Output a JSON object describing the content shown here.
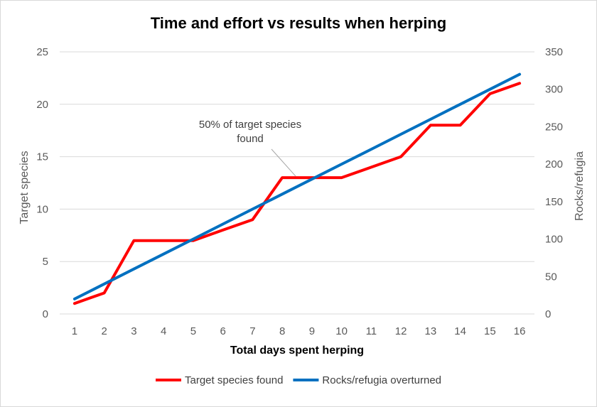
{
  "chart_data": {
    "type": "line",
    "title": "Time and effort vs results when herping",
    "xlabel": "Total days spent herping",
    "ylabel_left": "Target species",
    "ylabel_right": "Rocks/refugia",
    "x": [
      1,
      2,
      3,
      4,
      5,
      6,
      7,
      8,
      9,
      10,
      11,
      12,
      13,
      14,
      15,
      16
    ],
    "ylim_left": [
      0,
      25
    ],
    "yticks_left": [
      0,
      5,
      10,
      15,
      20,
      25
    ],
    "ylim_right": [
      0,
      350
    ],
    "yticks_right": [
      0,
      50,
      100,
      150,
      200,
      250,
      300,
      350
    ],
    "grid": true,
    "legend_position": "bottom",
    "series": [
      {
        "name": "Target species found",
        "axis": "left",
        "color": "#ff0000",
        "values": [
          1,
          2,
          7,
          7,
          7,
          8,
          9,
          13,
          13,
          13,
          14,
          15,
          18,
          18,
          21,
          22
        ]
      },
      {
        "name": "Rocks/refugia overturned",
        "axis": "right",
        "color": "#0070c0",
        "values": [
          20,
          40,
          60,
          80,
          100,
          120,
          140,
          160,
          180,
          200,
          220,
          240,
          260,
          280,
          300,
          320
        ]
      }
    ],
    "annotation": {
      "lines": [
        "50% of target species",
        "found"
      ],
      "points_to_x": 8.5,
      "points_to_y_left": 13
    }
  }
}
